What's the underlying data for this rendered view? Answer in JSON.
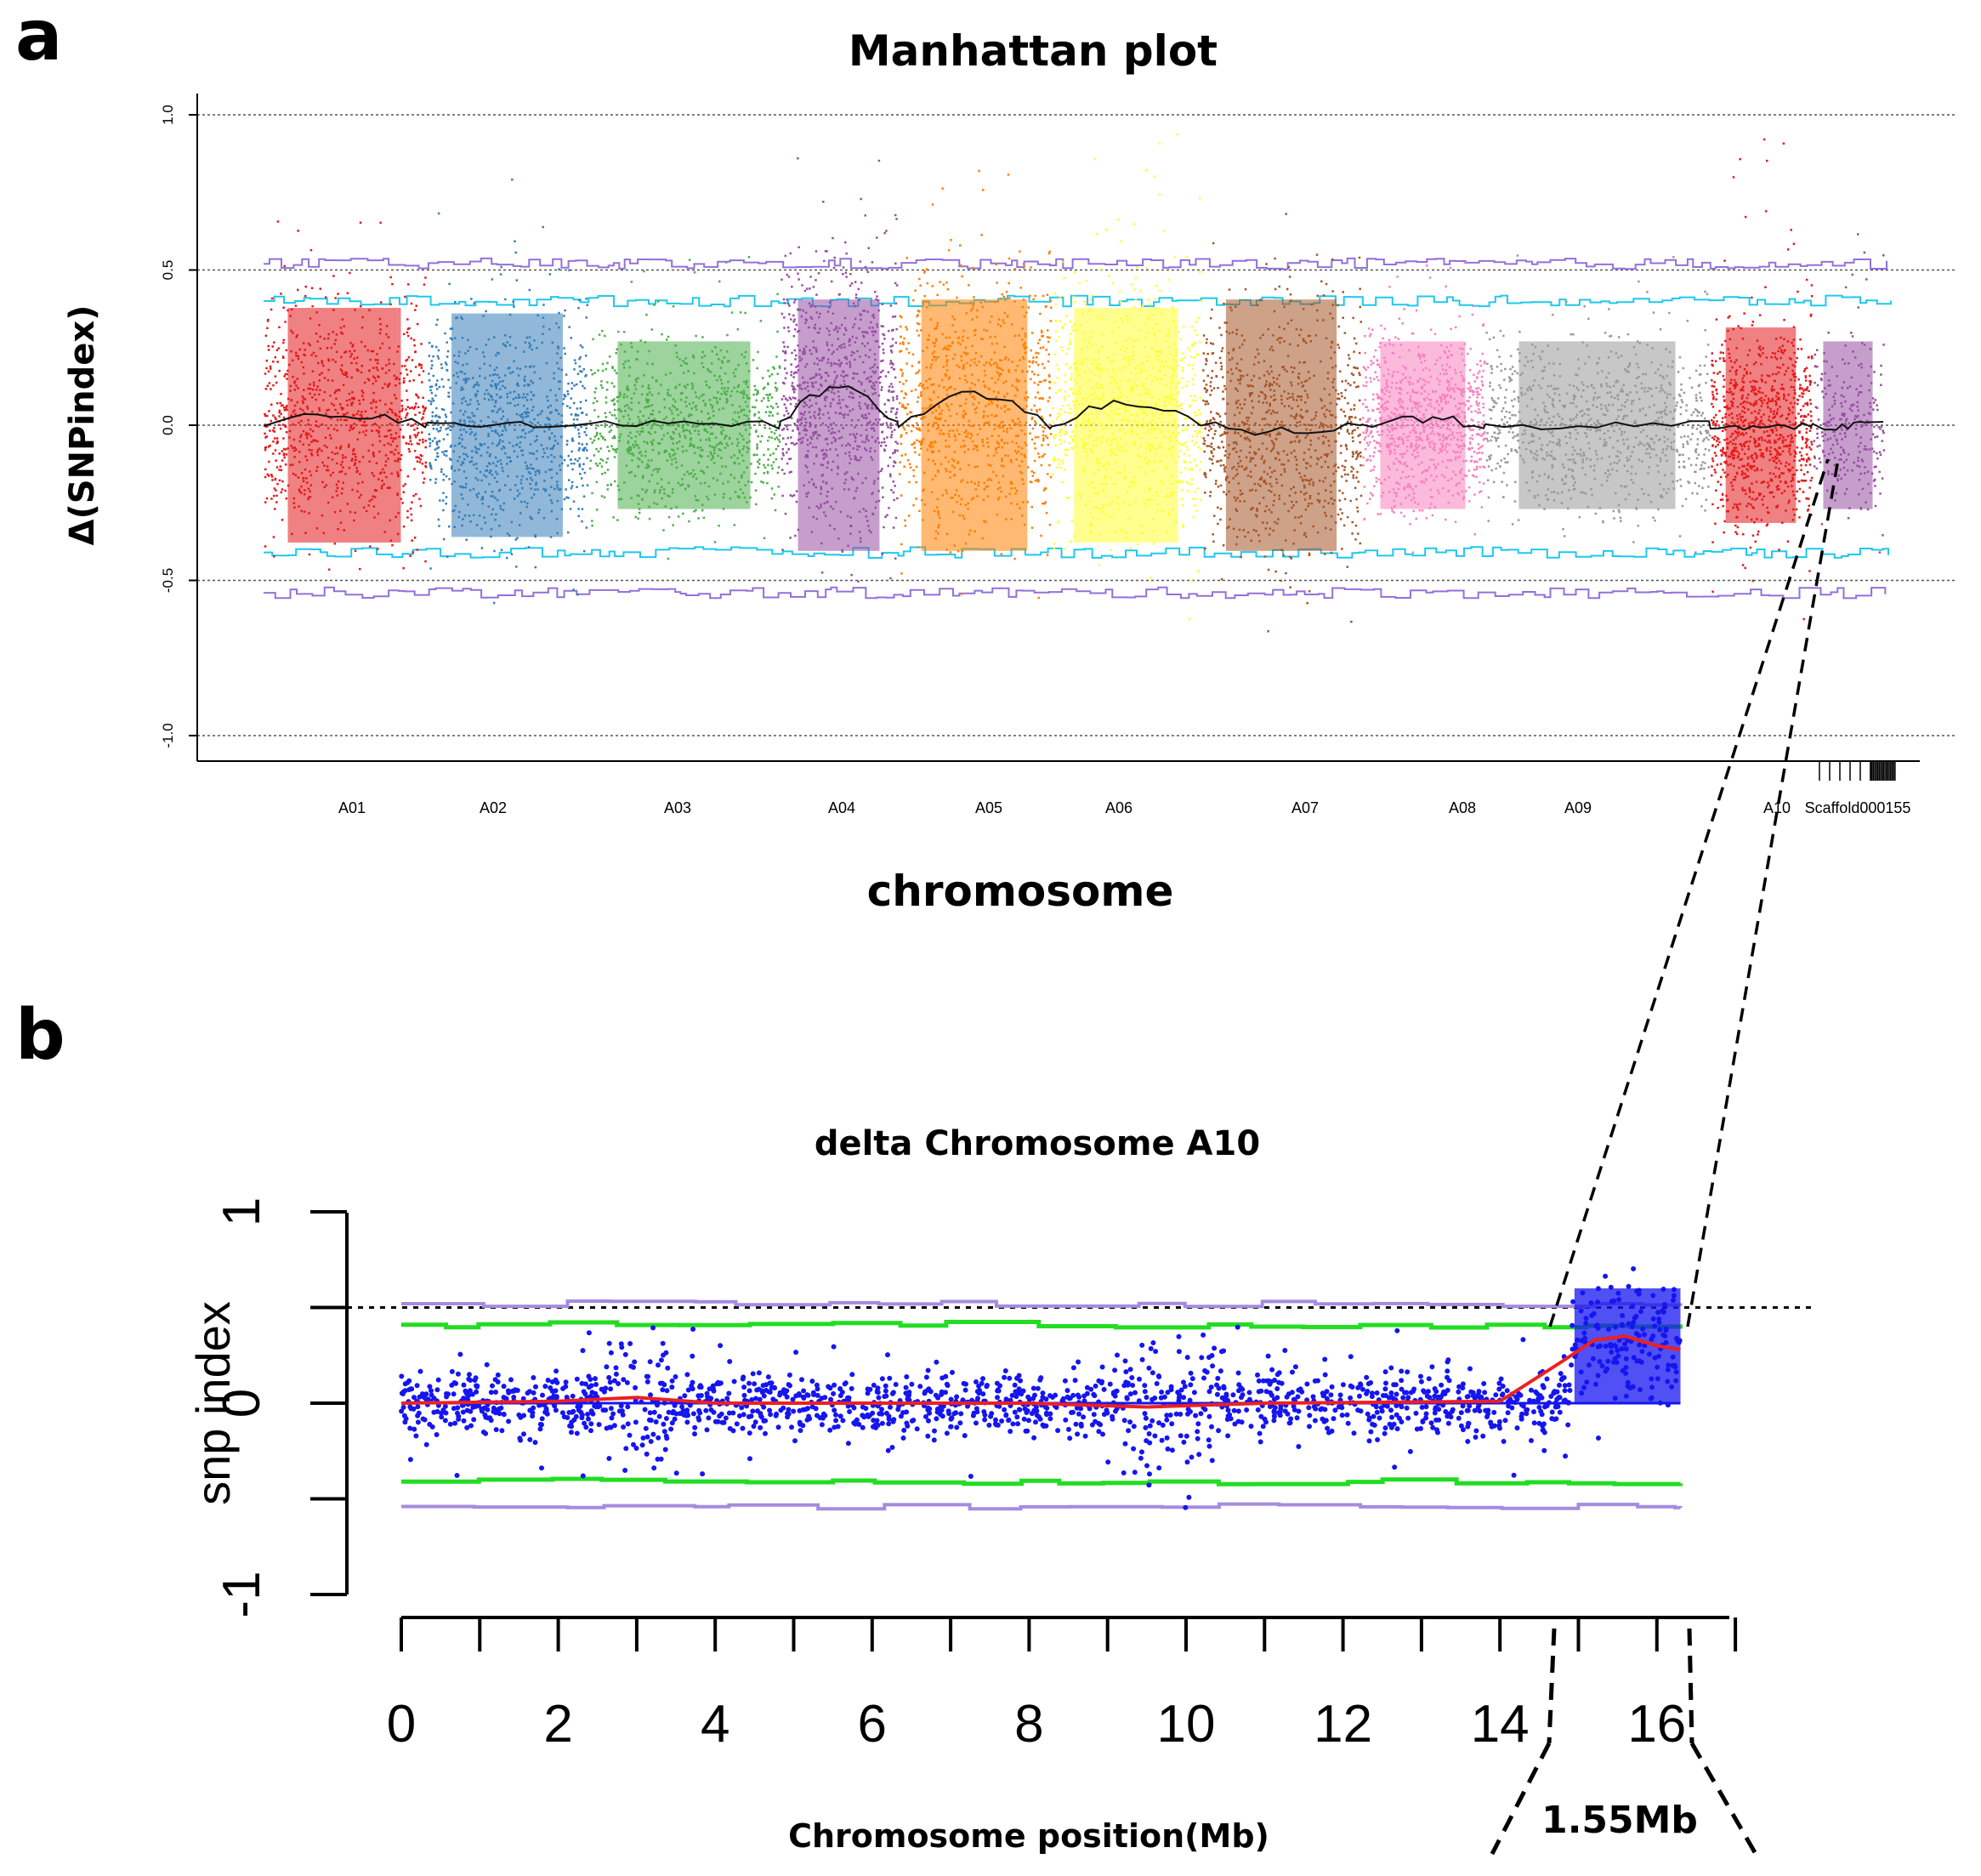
{
  "labels": {
    "panel_a": "a",
    "panel_b": "b",
    "region": "1.55Mb"
  },
  "colors": {
    "threshold_99": "#9370db",
    "threshold_95": "#1ec8ee",
    "fit_line_a": "#111111",
    "points_b": "#1515f0",
    "fit_line_b": "#ee2020",
    "threshold_95_b": "#22dd22",
    "threshold_99_b": "#a58be0"
  },
  "chart_data": [
    {
      "type": "scatter",
      "title": "Manhattan plot",
      "xlabel": "chromosome",
      "ylabel": "Δ(SNPindex)",
      "ylim": [
        -1.0,
        1.0
      ],
      "yticks": [
        "-1.0",
        "-0.5",
        "0.0",
        "0.5",
        "1.0"
      ],
      "reference_lines": [
        -1.0,
        -0.5,
        0.0,
        0.5,
        1.0
      ],
      "threshold_99": 0.52,
      "threshold_95": 0.4,
      "chromosomes": [
        {
          "name": "A01",
          "color": "#e41a1c",
          "spread": 0.42,
          "peak": 0.72,
          "fit": 0.03
        },
        {
          "name": "A02",
          "color": "#377eb8",
          "spread": 0.4,
          "peak": 0.86,
          "fit": 0.0
        },
        {
          "name": "A03",
          "color": "#4daf4a",
          "spread": 0.3,
          "peak": 0.58,
          "fit": 0.0
        },
        {
          "name": "A04",
          "color": "#984ea3",
          "spread": 0.45,
          "peak": 0.91,
          "fit": 0.12
        },
        {
          "name": "A05",
          "color": "#ff7f00",
          "spread": 0.45,
          "peak": 0.89,
          "fit": 0.1
        },
        {
          "name": "A06",
          "color": "#ffff33",
          "spread": 0.42,
          "peak": 1.0,
          "fit": 0.07
        },
        {
          "name": "A07",
          "color": "#a65628",
          "spread": 0.45,
          "peak": 0.74,
          "fit": -0.02
        },
        {
          "name": "A08",
          "color": "#f781bf",
          "spread": 0.3,
          "peak": 0.56,
          "fit": 0.02
        },
        {
          "name": "A09",
          "color": "#999999",
          "spread": 0.3,
          "peak": 0.58,
          "fit": 0.0
        },
        {
          "name": "A10",
          "color": "#e41a1c",
          "spread": 0.35,
          "peak": 1.0,
          "fit": 0.0
        },
        {
          "name": "Scaffold000155",
          "color": "#984ea3",
          "spread": 0.3,
          "peak": 0.75,
          "fit": 0.0
        }
      ]
    },
    {
      "type": "scatter",
      "title": "delta Chromosome A10",
      "xlabel": "Chromosome position(Mb)",
      "ylabel": "snp index",
      "xlim": [
        0,
        17
      ],
      "ylim": [
        -1,
        1
      ],
      "xticks": [
        "0",
        "2",
        "4",
        "6",
        "8",
        "10",
        "12",
        "14",
        "16"
      ],
      "yticks": [
        "-1",
        "0",
        "1"
      ],
      "threshold_dotted": 0.5,
      "threshold_95": 0.41,
      "threshold_99": 0.52,
      "candidate_region_mb": [
        14.8,
        16.35
      ],
      "fit_line": [
        [
          0,
          0
        ],
        [
          2,
          0.01
        ],
        [
          3,
          0.03
        ],
        [
          4,
          0.0
        ],
        [
          8,
          0.0
        ],
        [
          9.5,
          -0.02
        ],
        [
          11,
          0.0
        ],
        [
          14,
          0.01
        ],
        [
          14.8,
          0.22
        ],
        [
          15.2,
          0.33
        ],
        [
          15.6,
          0.35
        ],
        [
          16.0,
          0.3
        ],
        [
          16.3,
          0.28
        ]
      ]
    }
  ]
}
